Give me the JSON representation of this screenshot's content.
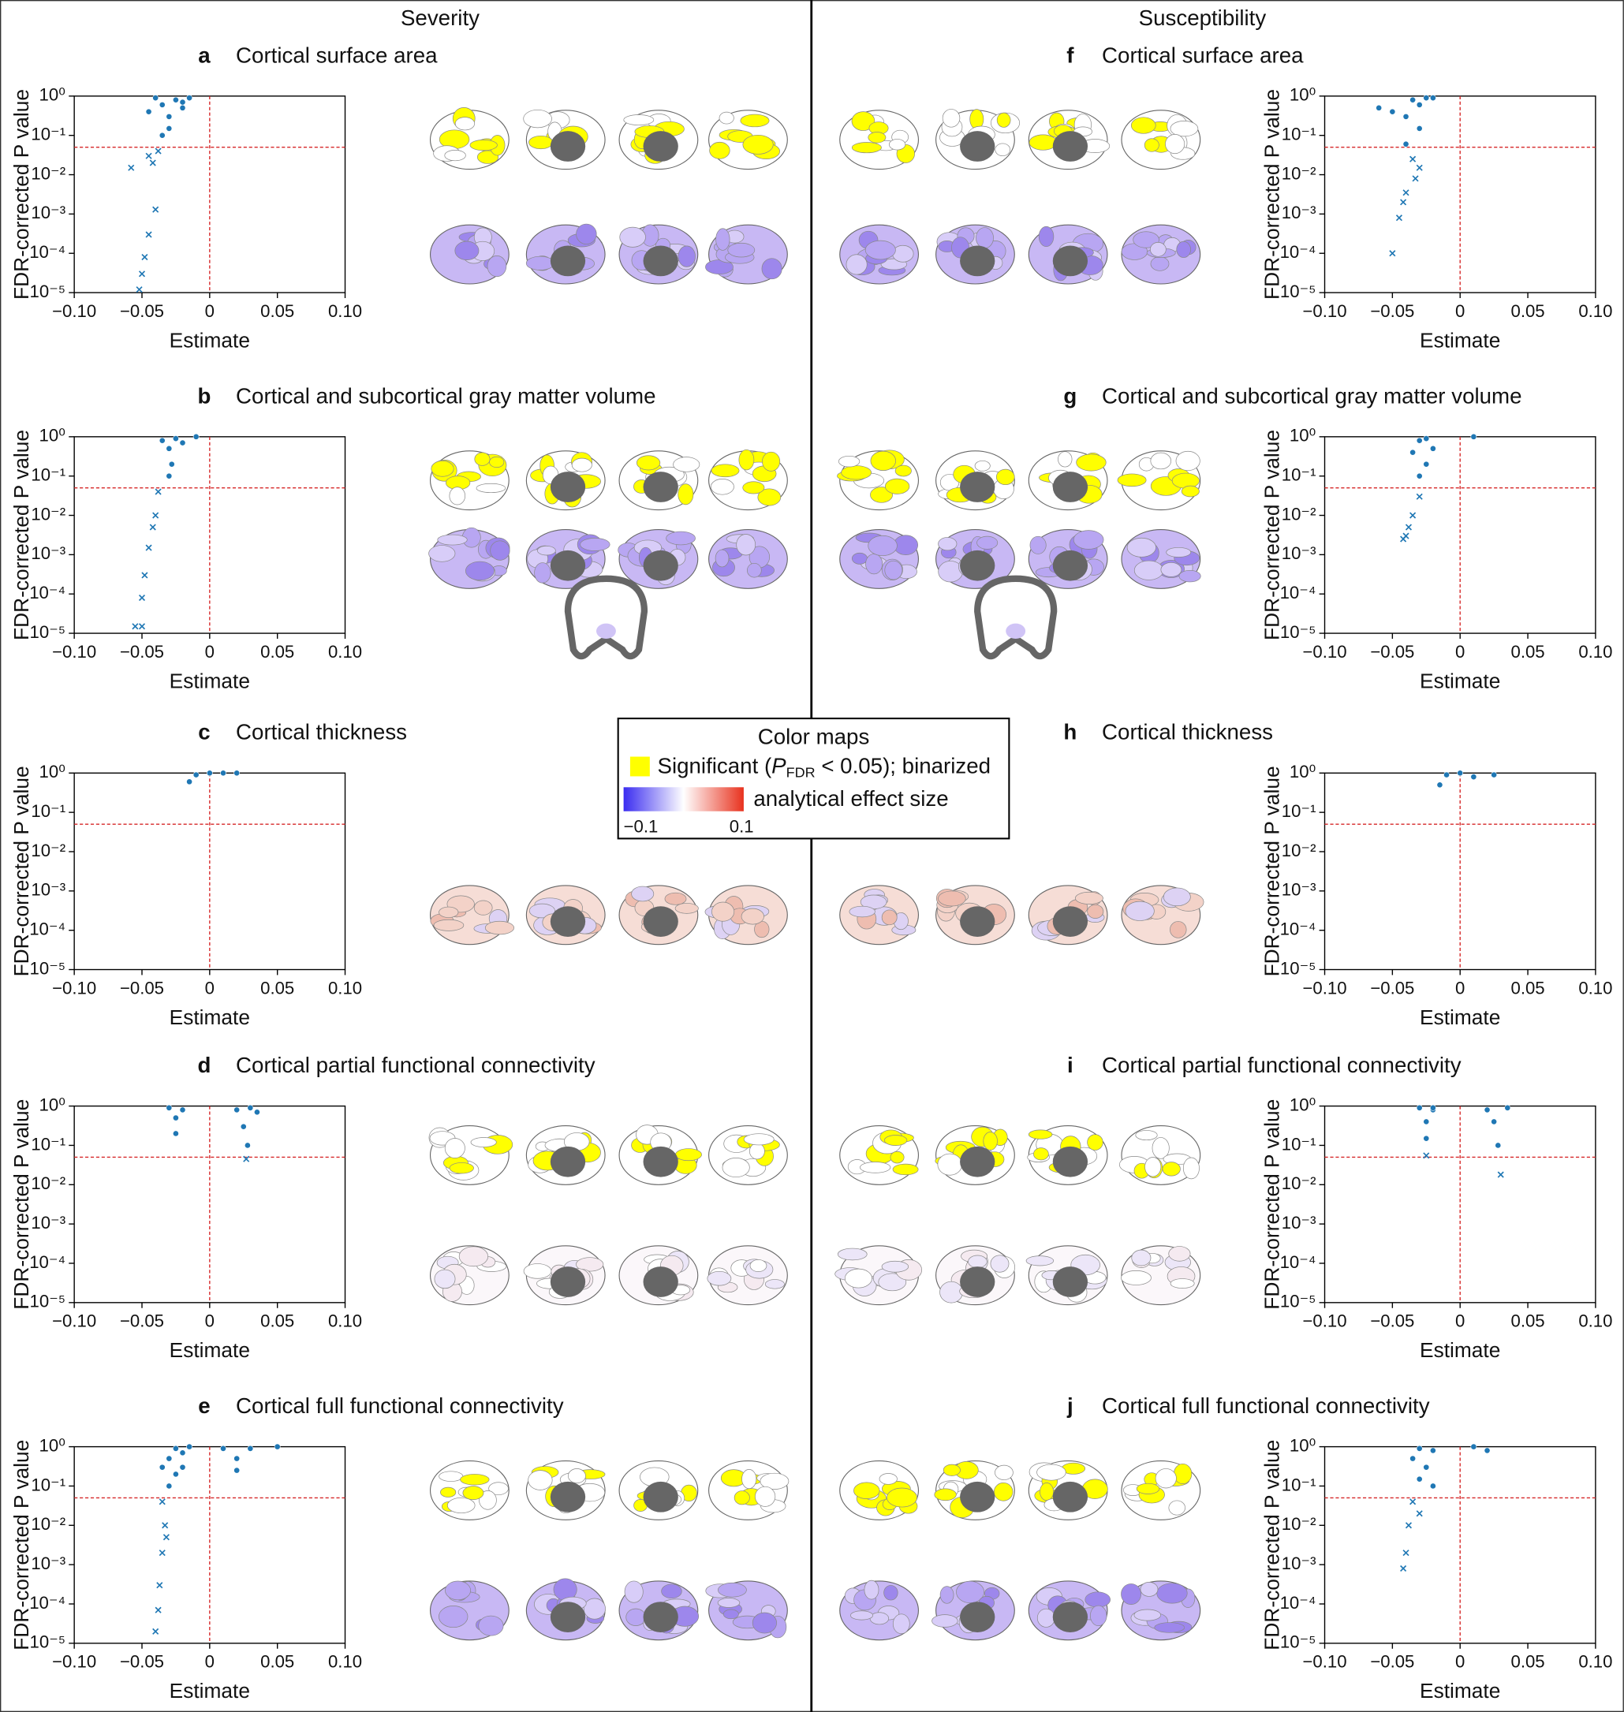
{
  "column_titles": [
    "Severity",
    "Susceptibility"
  ],
  "legend": {
    "title": "Color maps",
    "significant": [
      "Significant (",
      "P",
      "FDR",
      " < 0.05); binarized"
    ],
    "effect": "analytical effect size",
    "min": "−0.1",
    "max": "0.1"
  },
  "chart_data": [
    {
      "type": "scatter",
      "label": "a",
      "title": "Cortical surface area",
      "xlabel": "Estimate",
      "ylabel": "FDR-corrected P value",
      "log_y": true,
      "xlim": [
        -0.1,
        0.1
      ],
      "ylim": [
        1e-05,
        1
      ],
      "xticks": [
        {
          "value": -0.1,
          "label": "−0.10"
        },
        {
          "value": -0.05,
          "label": "−0.05"
        },
        0,
        0.05,
        {
          "value": 0.1,
          "label": "0.10"
        }
      ],
      "yticks": [
        {
          "value": 1e-05,
          "label": "10⁻⁵"
        },
        {
          "value": 0.0001,
          "label": "10⁻⁴"
        },
        {
          "value": 0.001,
          "label": "10⁻³"
        },
        {
          "value": 0.01,
          "label": "10⁻²"
        },
        {
          "value": 0.1,
          "label": "10⁻¹"
        },
        {
          "value": 1,
          "label": "10⁰"
        }
      ],
      "hlines": [
        0.05
      ],
      "vlines": [
        0
      ],
      "series": [
        {
          "marker": "o",
          "color": "#1f77b4",
          "x": [
            -0.045,
            -0.04,
            -0.035,
            -0.03,
            -0.025,
            -0.02,
            -0.015,
            -0.03,
            -0.035,
            -0.02
          ],
          "y": [
            0.4,
            0.9,
            0.6,
            0.3,
            0.8,
            0.5,
            0.9,
            0.15,
            0.1,
            0.7
          ]
        },
        {
          "marker": "x",
          "color": "#1f77b4",
          "x": [
            -0.058,
            -0.045,
            -0.042,
            -0.04,
            -0.045,
            -0.048,
            -0.05,
            -0.052,
            -0.038
          ],
          "y": [
            0.015,
            0.03,
            0.02,
            0.0013,
            0.0003,
            8e-05,
            3e-05,
            1.2e-05,
            0.04
          ]
        }
      ]
    },
    {
      "type": "scatter",
      "label": "b",
      "title": "Cortical and subcortical gray matter volume",
      "xlabel": "Estimate",
      "ylabel": "FDR-corrected P value",
      "log_y": true,
      "xlim": [
        -0.1,
        0.1
      ],
      "ylim": [
        1e-05,
        1
      ],
      "xticks": [
        {
          "value": -0.1,
          "label": "−0.10"
        },
        {
          "value": -0.05,
          "label": "−0.05"
        },
        0,
        0.05,
        {
          "value": 0.1,
          "label": "0.10"
        }
      ],
      "yticks": [
        {
          "value": 1e-05,
          "label": "10⁻⁵"
        },
        {
          "value": 0.0001,
          "label": "10⁻⁴"
        },
        {
          "value": 0.001,
          "label": "10⁻³"
        },
        {
          "value": 0.01,
          "label": "10⁻²"
        },
        {
          "value": 0.1,
          "label": "10⁻¹"
        },
        {
          "value": 1,
          "label": "10⁰"
        }
      ],
      "hlines": [
        0.05
      ],
      "vlines": [
        0
      ],
      "series": [
        {
          "marker": "o",
          "color": "#1f77b4",
          "x": [
            -0.035,
            -0.03,
            -0.025,
            -0.02,
            -0.028,
            -0.03,
            -0.01
          ],
          "y": [
            0.8,
            0.5,
            0.9,
            0.7,
            0.2,
            0.1,
            1
          ]
        },
        {
          "marker": "x",
          "color": "#1f77b4",
          "x": [
            -0.038,
            -0.04,
            -0.045,
            -0.048,
            -0.05,
            -0.055,
            -0.05,
            -0.042
          ],
          "y": [
            0.04,
            0.01,
            0.0015,
            0.0003,
            8e-05,
            1.5e-05,
            1.5e-05,
            0.005
          ]
        }
      ]
    },
    {
      "type": "scatter",
      "label": "c",
      "title": "Cortical thickness",
      "xlabel": "Estimate",
      "ylabel": "FDR-corrected P value",
      "log_y": true,
      "xlim": [
        -0.1,
        0.1
      ],
      "ylim": [
        1e-05,
        1
      ],
      "xticks": [
        {
          "value": -0.1,
          "label": "−0.10"
        },
        {
          "value": -0.05,
          "label": "−0.05"
        },
        0,
        0.05,
        {
          "value": 0.1,
          "label": "0.10"
        }
      ],
      "yticks": [
        {
          "value": 1e-05,
          "label": "10⁻⁵"
        },
        {
          "value": 0.0001,
          "label": "10⁻⁴"
        },
        {
          "value": 0.001,
          "label": "10⁻³"
        },
        {
          "value": 0.01,
          "label": "10⁻²"
        },
        {
          "value": 0.1,
          "label": "10⁻¹"
        },
        {
          "value": 1,
          "label": "10⁰"
        }
      ],
      "hlines": [
        0.05
      ],
      "vlines": [
        0
      ],
      "series": [
        {
          "marker": "o",
          "color": "#1f77b4",
          "x": [
            -0.015,
            -0.01,
            0,
            0.01,
            0.02
          ],
          "y": [
            0.6,
            0.9,
            1,
            1,
            1
          ]
        }
      ]
    },
    {
      "type": "scatter",
      "label": "d",
      "title": "Cortical partial functional connectivity",
      "xlabel": "Estimate",
      "ylabel": "FDR-corrected P value",
      "log_y": true,
      "xlim": [
        -0.1,
        0.1
      ],
      "ylim": [
        1e-05,
        1
      ],
      "xticks": [
        {
          "value": -0.1,
          "label": "−0.10"
        },
        {
          "value": -0.05,
          "label": "−0.05"
        },
        0,
        0.05,
        {
          "value": 0.1,
          "label": "0.10"
        }
      ],
      "yticks": [
        {
          "value": 1e-05,
          "label": "10⁻⁵"
        },
        {
          "value": 0.0001,
          "label": "10⁻⁴"
        },
        {
          "value": 0.001,
          "label": "10⁻³"
        },
        {
          "value": 0.01,
          "label": "10⁻²"
        },
        {
          "value": 0.1,
          "label": "10⁻¹"
        },
        {
          "value": 1,
          "label": "10⁰"
        }
      ],
      "hlines": [
        0.05
      ],
      "vlines": [
        0
      ],
      "series": [
        {
          "marker": "o",
          "color": "#1f77b4",
          "x": [
            -0.03,
            -0.025,
            -0.025,
            -0.02,
            0.02,
            0.025,
            0.028,
            0.03,
            0.035
          ],
          "y": [
            0.9,
            0.5,
            0.2,
            0.8,
            0.8,
            0.3,
            0.1,
            0.9,
            0.7
          ]
        },
        {
          "marker": "x",
          "color": "#1f77b4",
          "x": [
            0.027
          ],
          "y": [
            0.045
          ]
        }
      ]
    },
    {
      "type": "scatter",
      "label": "e",
      "title": "Cortical full functional connectivity",
      "xlabel": "Estimate",
      "ylabel": "FDR-corrected P value",
      "log_y": true,
      "xlim": [
        -0.1,
        0.1
      ],
      "ylim": [
        1e-05,
        1
      ],
      "xticks": [
        {
          "value": -0.1,
          "label": "−0.10"
        },
        {
          "value": -0.05,
          "label": "−0.05"
        },
        0,
        0.05,
        {
          "value": 0.1,
          "label": "0.10"
        }
      ],
      "yticks": [
        {
          "value": 1e-05,
          "label": "10⁻⁵"
        },
        {
          "value": 0.0001,
          "label": "10⁻⁴"
        },
        {
          "value": 0.001,
          "label": "10⁻³"
        },
        {
          "value": 0.01,
          "label": "10⁻²"
        },
        {
          "value": 0.1,
          "label": "10⁻¹"
        },
        {
          "value": 1,
          "label": "10⁰"
        }
      ],
      "hlines": [
        0.05
      ],
      "vlines": [
        0
      ],
      "series": [
        {
          "marker": "o",
          "color": "#1f77b4",
          "x": [
            -0.03,
            -0.025,
            -0.02,
            -0.015,
            -0.03,
            -0.025,
            -0.02,
            0.01,
            0.02,
            0.03,
            0.05,
            0.02,
            -0.035
          ],
          "y": [
            0.5,
            0.9,
            0.7,
            1,
            0.1,
            0.2,
            0.3,
            0.9,
            0.5,
            0.9,
            1,
            0.25,
            0.3
          ]
        },
        {
          "marker": "x",
          "color": "#1f77b4",
          "x": [
            -0.035,
            -0.033,
            -0.035,
            -0.037,
            -0.038,
            -0.04,
            -0.032
          ],
          "y": [
            0.04,
            0.01,
            0.002,
            0.0003,
            7e-05,
            2e-05,
            0.005
          ]
        }
      ]
    },
    {
      "type": "scatter",
      "label": "f",
      "title": "Cortical surface area",
      "xlabel": "Estimate",
      "ylabel": "FDR-corrected P value",
      "log_y": true,
      "xlim": [
        -0.1,
        0.1
      ],
      "ylim": [
        1e-05,
        1
      ],
      "xticks": [
        {
          "value": -0.1,
          "label": "−0.10"
        },
        {
          "value": -0.05,
          "label": "−0.05"
        },
        0,
        0.05,
        {
          "value": 0.1,
          "label": "0.10"
        }
      ],
      "yticks": [
        {
          "value": 1e-05,
          "label": "10⁻⁵"
        },
        {
          "value": 0.0001,
          "label": "10⁻⁴"
        },
        {
          "value": 0.001,
          "label": "10⁻³"
        },
        {
          "value": 0.01,
          "label": "10⁻²"
        },
        {
          "value": 0.1,
          "label": "10⁻¹"
        },
        {
          "value": 1,
          "label": "10⁰"
        }
      ],
      "hlines": [
        0.05
      ],
      "vlines": [
        0
      ],
      "series": [
        {
          "marker": "o",
          "color": "#1f77b4",
          "x": [
            -0.06,
            -0.05,
            -0.04,
            -0.035,
            -0.03,
            -0.025,
            -0.02,
            -0.04,
            -0.03
          ],
          "y": [
            0.5,
            0.4,
            0.3,
            0.8,
            0.6,
            0.9,
            0.9,
            0.06,
            0.15
          ]
        },
        {
          "marker": "x",
          "color": "#1f77b4",
          "x": [
            -0.035,
            -0.03,
            -0.04,
            -0.042,
            -0.045,
            -0.05,
            -0.033
          ],
          "y": [
            0.025,
            0.015,
            0.0035,
            0.002,
            0.0008,
            0.0001,
            0.008
          ]
        }
      ]
    },
    {
      "type": "scatter",
      "label": "g",
      "title": "Cortical and subcortical gray matter volume",
      "xlabel": "Estimate",
      "ylabel": "FDR-corrected P value",
      "log_y": true,
      "xlim": [
        -0.1,
        0.1
      ],
      "ylim": [
        1e-05,
        1
      ],
      "xticks": [
        {
          "value": -0.1,
          "label": "−0.10"
        },
        {
          "value": -0.05,
          "label": "−0.05"
        },
        0,
        0.05,
        {
          "value": 0.1,
          "label": "0.10"
        }
      ],
      "yticks": [
        {
          "value": 1e-05,
          "label": "10⁻⁵"
        },
        {
          "value": 0.0001,
          "label": "10⁻⁴"
        },
        {
          "value": 0.001,
          "label": "10⁻³"
        },
        {
          "value": 0.01,
          "label": "10⁻²"
        },
        {
          "value": 0.1,
          "label": "10⁻¹"
        },
        {
          "value": 1,
          "label": "10⁰"
        }
      ],
      "hlines": [
        0.05
      ],
      "vlines": [
        0
      ],
      "series": [
        {
          "marker": "o",
          "color": "#1f77b4",
          "x": [
            -0.035,
            -0.03,
            -0.025,
            -0.02,
            -0.025,
            -0.03,
            0.01
          ],
          "y": [
            0.4,
            0.8,
            0.9,
            0.5,
            0.2,
            0.1,
            1
          ]
        },
        {
          "marker": "x",
          "color": "#1f77b4",
          "x": [
            -0.03,
            -0.035,
            -0.038,
            -0.04,
            -0.042
          ],
          "y": [
            0.03,
            0.01,
            0.005,
            0.003,
            0.0025
          ]
        }
      ]
    },
    {
      "type": "scatter",
      "label": "h",
      "title": "Cortical thickness",
      "xlabel": "Estimate",
      "ylabel": "FDR-corrected P value",
      "log_y": true,
      "xlim": [
        -0.1,
        0.1
      ],
      "ylim": [
        1e-05,
        1
      ],
      "xticks": [
        {
          "value": -0.1,
          "label": "−0.10"
        },
        {
          "value": -0.05,
          "label": "−0.05"
        },
        0,
        0.05,
        {
          "value": 0.1,
          "label": "0.10"
        }
      ],
      "yticks": [
        {
          "value": 1e-05,
          "label": "10⁻⁵"
        },
        {
          "value": 0.0001,
          "label": "10⁻⁴"
        },
        {
          "value": 0.001,
          "label": "10⁻³"
        },
        {
          "value": 0.01,
          "label": "10⁻²"
        },
        {
          "value": 0.1,
          "label": "10⁻¹"
        },
        {
          "value": 1,
          "label": "10⁰"
        }
      ],
      "hlines": [
        0.05
      ],
      "vlines": [
        0
      ],
      "series": [
        {
          "marker": "o",
          "color": "#1f77b4",
          "x": [
            -0.015,
            -0.01,
            0,
            0.01,
            0.025
          ],
          "y": [
            0.5,
            0.9,
            1,
            0.8,
            0.9
          ]
        }
      ]
    },
    {
      "type": "scatter",
      "label": "i",
      "title": "Cortical partial functional connectivity",
      "xlabel": "Estimate",
      "ylabel": "FDR-corrected P value",
      "log_y": true,
      "xlim": [
        -0.1,
        0.1
      ],
      "ylim": [
        1e-05,
        1
      ],
      "xticks": [
        {
          "value": -0.1,
          "label": "−0.10"
        },
        {
          "value": -0.05,
          "label": "−0.05"
        },
        0,
        0.05,
        {
          "value": 0.1,
          "label": "0.10"
        }
      ],
      "yticks": [
        {
          "value": 1e-05,
          "label": "10⁻⁵"
        },
        {
          "value": 0.0001,
          "label": "10⁻⁴"
        },
        {
          "value": 0.001,
          "label": "10⁻³"
        },
        {
          "value": 0.01,
          "label": "10⁻²"
        },
        {
          "value": 0.1,
          "label": "10⁻¹"
        },
        {
          "value": 1,
          "label": "10⁰"
        }
      ],
      "hlines": [
        0.05
      ],
      "vlines": [
        0
      ],
      "series": [
        {
          "marker": "o",
          "color": "#1f77b4",
          "x": [
            -0.03,
            -0.025,
            -0.025,
            -0.02,
            0.02,
            0.025,
            0.028,
            0.035,
            -0.02
          ],
          "y": [
            0.9,
            0.4,
            0.15,
            0.8,
            0.8,
            0.4,
            0.1,
            0.9,
            0.9
          ]
        },
        {
          "marker": "x",
          "color": "#1f77b4",
          "x": [
            -0.025,
            0.03
          ],
          "y": [
            0.055,
            0.018
          ]
        }
      ]
    },
    {
      "type": "scatter",
      "label": "j",
      "title": "Cortical full functional connectivity",
      "xlabel": "Estimate",
      "ylabel": "FDR-corrected P value",
      "log_y": true,
      "xlim": [
        -0.1,
        0.1
      ],
      "ylim": [
        1e-05,
        1
      ],
      "xticks": [
        {
          "value": -0.1,
          "label": "−0.10"
        },
        {
          "value": -0.05,
          "label": "−0.05"
        },
        0,
        0.05,
        {
          "value": 0.1,
          "label": "0.10"
        }
      ],
      "yticks": [
        {
          "value": 1e-05,
          "label": "10⁻⁵"
        },
        {
          "value": 0.0001,
          "label": "10⁻⁴"
        },
        {
          "value": 0.001,
          "label": "10⁻³"
        },
        {
          "value": 0.01,
          "label": "10⁻²"
        },
        {
          "value": 0.1,
          "label": "10⁻¹"
        },
        {
          "value": 1,
          "label": "10⁰"
        }
      ],
      "hlines": [
        0.05
      ],
      "vlines": [
        0
      ],
      "series": [
        {
          "marker": "o",
          "color": "#1f77b4",
          "x": [
            -0.035,
            -0.03,
            -0.025,
            -0.02,
            -0.03,
            -0.02,
            0.01,
            0.02
          ],
          "y": [
            0.5,
            0.9,
            0.3,
            0.8,
            0.15,
            0.1,
            1,
            0.8
          ]
        },
        {
          "marker": "x",
          "color": "#1f77b4",
          "x": [
            -0.035,
            -0.038,
            -0.04,
            -0.042,
            -0.03
          ],
          "y": [
            0.04,
            0.01,
            0.002,
            0.0008,
            0.02
          ]
        }
      ]
    }
  ]
}
